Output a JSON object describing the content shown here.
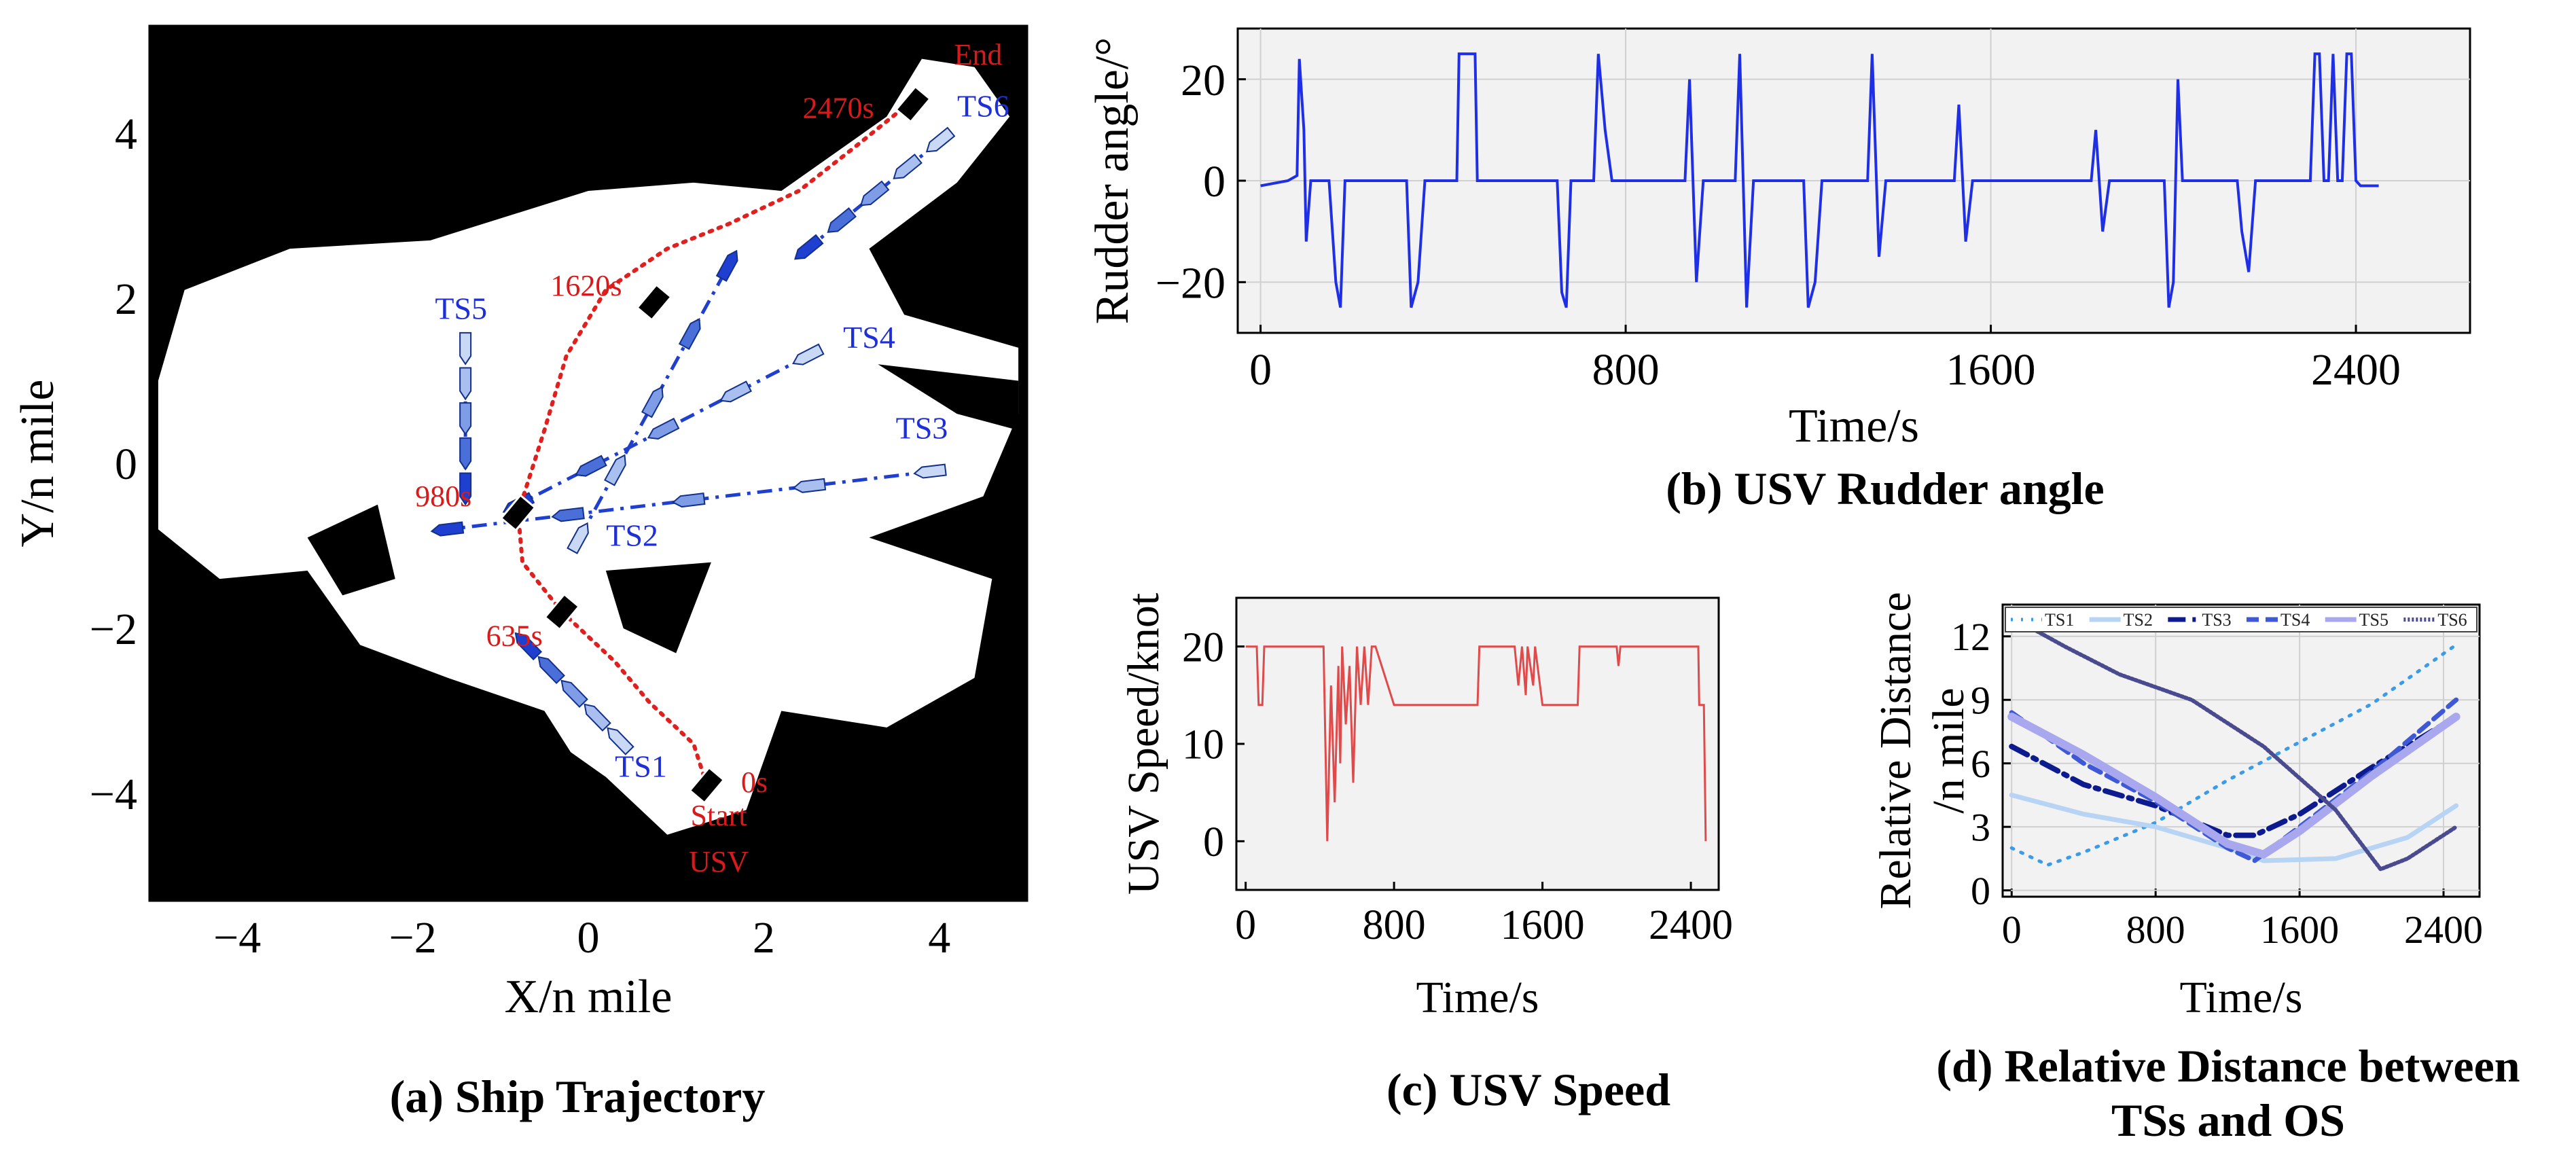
{
  "captions": {
    "a": "(a) Ship Trajectory",
    "b": "(b) USV Rudder angle",
    "c": "(c) USV Speed",
    "d_line1": "(d) Relative Distance between",
    "d_line2": "TSs and OS"
  },
  "colors": {
    "usv_path": "#e0201e",
    "ts_path": "#1f3fd0",
    "rudder_line": "#1f2fe6",
    "speed_line": "#e04a4a",
    "plot_bg": "#f2f2f2",
    "grid": "#d0d0d0"
  },
  "chart_data": [
    {
      "id": "a",
      "type": "scatter",
      "title": "(a) Ship Trajectory",
      "xlabel": "X/n mile",
      "ylabel": "Y/n mile",
      "xlim": [
        -5,
        5
      ],
      "ylim": [
        -5.3,
        5.3
      ],
      "xticks": [
        -4,
        -2,
        0,
        2,
        4
      ],
      "yticks": [
        -4,
        -2,
        0,
        2,
        4
      ],
      "xtick_labels": [
        "−4",
        "−2",
        "0",
        "2",
        "4"
      ],
      "ytick_labels": [
        "−4",
        "−2",
        "0",
        "2",
        "4"
      ],
      "usv_path": [
        [
          1.35,
          -3.9
        ],
        [
          1.2,
          -3.4
        ],
        [
          0.7,
          -2.9
        ],
        [
          0.3,
          -2.4
        ],
        [
          -0.3,
          -1.8
        ],
        [
          -0.75,
          -1.2
        ],
        [
          -0.8,
          -0.6
        ],
        [
          -0.5,
          0.4
        ],
        [
          -0.25,
          1.3
        ],
        [
          0.2,
          2.1
        ],
        [
          0.9,
          2.6
        ],
        [
          1.6,
          2.9
        ],
        [
          2.4,
          3.3
        ],
        [
          3.0,
          3.8
        ],
        [
          3.7,
          4.4
        ]
      ],
      "usv_positions": [
        {
          "label": "0s",
          "x": 1.35,
          "y": -3.9
        },
        {
          "label": "635s",
          "x": -0.3,
          "y": -1.8
        },
        {
          "label": "980s",
          "x": -0.8,
          "y": -0.6
        },
        {
          "label": "1620s",
          "x": 0.75,
          "y": 1.95
        },
        {
          "label": "2470s",
          "x": 3.7,
          "y": 4.35
        }
      ],
      "target_ships": [
        {
          "name": "TS1",
          "start": [
            0.35,
            -3.35
          ],
          "end": [
            -0.7,
            -2.2
          ],
          "label_at": [
            0.6,
            -3.8
          ]
        },
        {
          "name": "TS2",
          "start": [
            -0.1,
            -0.9
          ],
          "end": [
            1.6,
            2.4
          ],
          "label_at": [
            0.5,
            -1.0
          ]
        },
        {
          "name": "TS3",
          "start": [
            3.9,
            -0.1
          ],
          "end": [
            -1.6,
            -0.8
          ],
          "label_at": [
            3.8,
            0.3
          ]
        },
        {
          "name": "TS4",
          "start": [
            2.5,
            1.3
          ],
          "end": [
            -0.8,
            -0.5
          ],
          "label_at": [
            3.2,
            1.4
          ]
        },
        {
          "name": "TS5",
          "start": [
            -1.4,
            1.4
          ],
          "end": [
            -1.4,
            -0.3
          ],
          "label_at": [
            -1.45,
            1.75
          ]
        },
        {
          "name": "TS6",
          "start": [
            4.0,
            3.9
          ],
          "end": [
            2.5,
            2.6
          ],
          "label_at": [
            4.5,
            4.2
          ]
        }
      ],
      "annotations": [
        "End",
        "Start",
        "USV"
      ]
    },
    {
      "id": "b",
      "type": "line",
      "title": "(b) USV Rudder angle",
      "xlabel": "Time/s",
      "ylabel": "Rudder angle/°",
      "xlim": [
        -50,
        2650
      ],
      "ylim": [
        -30,
        30
      ],
      "xticks": [
        0,
        800,
        1600,
        2400
      ],
      "yticks": [
        -20,
        0,
        20
      ],
      "ytick_labels": [
        "−20",
        "0",
        "20"
      ],
      "series": [
        {
          "name": "rudder",
          "x": [
            0,
            60,
            80,
            85,
            95,
            100,
            110,
            150,
            165,
            175,
            185,
            320,
            330,
            345,
            360,
            430,
            435,
            470,
            475,
            650,
            660,
            670,
            680,
            730,
            740,
            755,
            770,
            930,
            940,
            955,
            970,
            1040,
            1050,
            1065,
            1080,
            1190,
            1200,
            1215,
            1230,
            1330,
            1340,
            1355,
            1370,
            1520,
            1530,
            1545,
            1560,
            1820,
            1830,
            1845,
            1860,
            1900,
            1980,
            1990,
            2000,
            2010,
            2020,
            2140,
            2150,
            2165,
            2180,
            2300,
            2310,
            2320,
            2330,
            2340,
            2350,
            2360,
            2370,
            2380,
            2390,
            2400,
            2410,
            2420,
            2440,
            2450
          ],
          "values": [
            -1,
            0,
            1,
            24,
            10,
            -12,
            0,
            0,
            -20,
            -25,
            0,
            0,
            -25,
            -20,
            0,
            0,
            25,
            25,
            0,
            0,
            -22,
            -25,
            0,
            0,
            25,
            10,
            0,
            0,
            20,
            -20,
            0,
            0,
            25,
            -25,
            0,
            0,
            -25,
            -20,
            0,
            0,
            25,
            -15,
            0,
            0,
            15,
            -12,
            0,
            0,
            10,
            -10,
            0,
            0,
            0,
            -25,
            -20,
            20,
            0,
            0,
            -10,
            -18,
            0,
            0,
            25,
            25,
            0,
            0,
            25,
            0,
            0,
            25,
            25,
            0,
            -1,
            -1,
            -1,
            -1
          ]
        }
      ]
    },
    {
      "id": "c",
      "type": "line",
      "title": "(c) USV Speed",
      "xlabel": "Time/s",
      "ylabel": "USV Speed/knot",
      "xlim": [
        -50,
        2550
      ],
      "ylim": [
        -5,
        25
      ],
      "xticks": [
        0,
        800,
        1600,
        2400
      ],
      "yticks": [
        0,
        10,
        20
      ],
      "series": [
        {
          "name": "speed",
          "x": [
            0,
            60,
            70,
            90,
            100,
            420,
            440,
            460,
            480,
            500,
            510,
            520,
            540,
            560,
            580,
            600,
            620,
            640,
            660,
            680,
            700,
            800,
            1250,
            1260,
            1450,
            1470,
            1490,
            1510,
            1520,
            1550,
            1560,
            1600,
            1790,
            1800,
            2000,
            2010,
            2020,
            2030,
            2440,
            2445,
            2470,
            2480
          ],
          "values": [
            20,
            20,
            14,
            14,
            20,
            20,
            0,
            16,
            4,
            18,
            8,
            20,
            12,
            18,
            6,
            20,
            14,
            20,
            14,
            20,
            20,
            14,
            14,
            20,
            20,
            16,
            20,
            15,
            20,
            16,
            20,
            14,
            14,
            20,
            20,
            18,
            20,
            20,
            20,
            14,
            14,
            0
          ]
        }
      ]
    },
    {
      "id": "d",
      "type": "line",
      "title": "(d) Relative Distance between TSs and OS",
      "xlabel": "Time/s",
      "ylabel_line1": "Relative Distance",
      "ylabel_line2": "/n mile",
      "xlim": [
        -50,
        2600
      ],
      "ylim": [
        -0.3,
        13.5
      ],
      "xticks": [
        0,
        800,
        1600,
        2400
      ],
      "yticks": [
        0,
        3,
        6,
        9,
        12
      ],
      "legend_position": "top",
      "series": [
        {
          "name": "TS1",
          "x": [
            0,
            200,
            400,
            800,
            1200,
            1600,
            2000,
            2470
          ],
          "values": [
            2.0,
            1.2,
            1.8,
            3.2,
            5.2,
            7.0,
            8.8,
            11.6
          ]
        },
        {
          "name": "TS2",
          "x": [
            0,
            400,
            800,
            1200,
            1400,
            1800,
            2200,
            2470
          ],
          "values": [
            4.5,
            3.6,
            3.0,
            2.0,
            1.4,
            1.5,
            2.5,
            4.0
          ]
        },
        {
          "name": "TS3",
          "x": [
            0,
            400,
            800,
            1200,
            1350,
            1600,
            2000,
            2470
          ],
          "values": [
            6.8,
            5.0,
            4.0,
            2.6,
            2.6,
            3.6,
            5.8,
            8.2
          ]
        },
        {
          "name": "TS4",
          "x": [
            0,
            400,
            800,
            1200,
            1350,
            1600,
            2000,
            2470
          ],
          "values": [
            8.4,
            6.0,
            4.2,
            2.0,
            1.4,
            3.0,
            5.6,
            9.0
          ]
        },
        {
          "name": "TS5",
          "x": [
            0,
            400,
            800,
            1200,
            1400,
            1600,
            2000,
            2470
          ],
          "values": [
            8.2,
            6.4,
            4.4,
            2.2,
            1.7,
            2.8,
            5.4,
            8.2
          ]
        },
        {
          "name": "TS6",
          "x": [
            0,
            300,
            600,
            1000,
            1400,
            1800,
            2050,
            2200,
            2470
          ],
          "values": [
            12.9,
            11.5,
            10.2,
            9.0,
            6.8,
            3.8,
            1.0,
            1.5,
            3.0
          ]
        }
      ]
    }
  ]
}
